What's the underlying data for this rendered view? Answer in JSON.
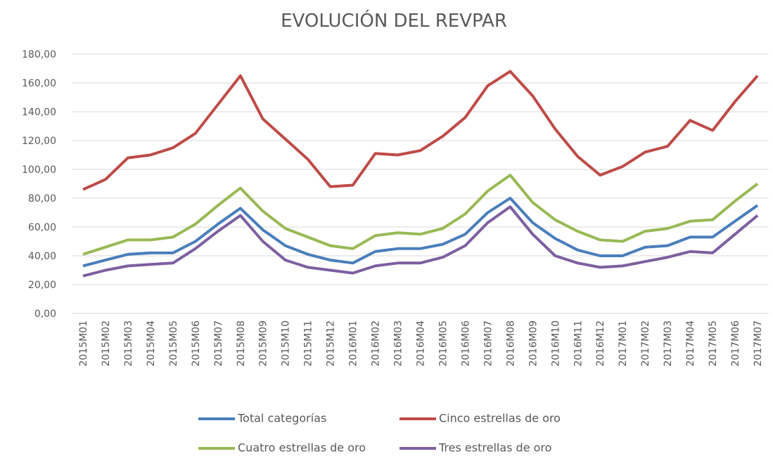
{
  "chart_data": {
    "type": "line",
    "title": "EVOLUCIÓN DEL REVPAR",
    "categories": [
      "2015M01",
      "2015M02",
      "2015M03",
      "2015M04",
      "2015M05",
      "2015M06",
      "2015M07",
      "2015M08",
      "2015M09",
      "2015M10",
      "2015M11",
      "2015M12",
      "2016M01",
      "2016M02",
      "2016M03",
      "2016M04",
      "2016M05",
      "2016M06",
      "2016M07",
      "2016M08",
      "2016M09",
      "2016M10",
      "2016M11",
      "2016M12",
      "2017M01",
      "2017M02",
      "2017M03",
      "2017M04",
      "2017M05",
      "2017M06",
      "2017M07"
    ],
    "series": [
      {
        "name": "Total categorías",
        "color": "#4a7ebb",
        "values": [
          33,
          37,
          41,
          42,
          42,
          50,
          62,
          73,
          58,
          47,
          41,
          37,
          35,
          43,
          45,
          45,
          48,
          55,
          70,
          80,
          63,
          52,
          44,
          40,
          40,
          46,
          47,
          53,
          53,
          64,
          75
        ]
      },
      {
        "name": "Cinco estrellas de oro",
        "color": "#be4b48",
        "values": [
          86,
          93,
          108,
          110,
          115,
          125,
          145,
          165,
          135,
          121,
          107,
          88,
          89,
          111,
          110,
          113,
          123,
          136,
          158,
          168,
          151,
          128,
          109,
          96,
          102,
          112,
          116,
          134,
          127,
          147,
          165
        ]
      },
      {
        "name": "Cuatro estrellas de oro",
        "color": "#98b954",
        "values": [
          41,
          46,
          51,
          51,
          53,
          62,
          75,
          87,
          71,
          59,
          53,
          47,
          45,
          54,
          56,
          55,
          59,
          69,
          85,
          96,
          77,
          65,
          57,
          51,
          50,
          57,
          59,
          64,
          65,
          78,
          90
        ]
      },
      {
        "name": "Tres estrellas de oro",
        "color": "#7d5fa0",
        "values": [
          26,
          30,
          33,
          34,
          35,
          45,
          57,
          68,
          50,
          37,
          32,
          30,
          28,
          33,
          35,
          35,
          39,
          47,
          63,
          74,
          55,
          40,
          35,
          32,
          33,
          36,
          39,
          43,
          42,
          55,
          68
        ]
      }
    ],
    "ylim": [
      0,
      180
    ],
    "yticks": [
      {
        "value": 0,
        "label": "0,00"
      },
      {
        "value": 20,
        "label": "20,00"
      },
      {
        "value": 40,
        "label": "40,00"
      },
      {
        "value": 60,
        "label": "60,00"
      },
      {
        "value": 80,
        "label": "80,00"
      },
      {
        "value": 100,
        "label": "100,00"
      },
      {
        "value": 120,
        "label": "120,00"
      },
      {
        "value": 140,
        "label": "140,00"
      },
      {
        "value": 160,
        "label": "160,00"
      },
      {
        "value": 180,
        "label": "180,00"
      }
    ],
    "grid": true
  }
}
